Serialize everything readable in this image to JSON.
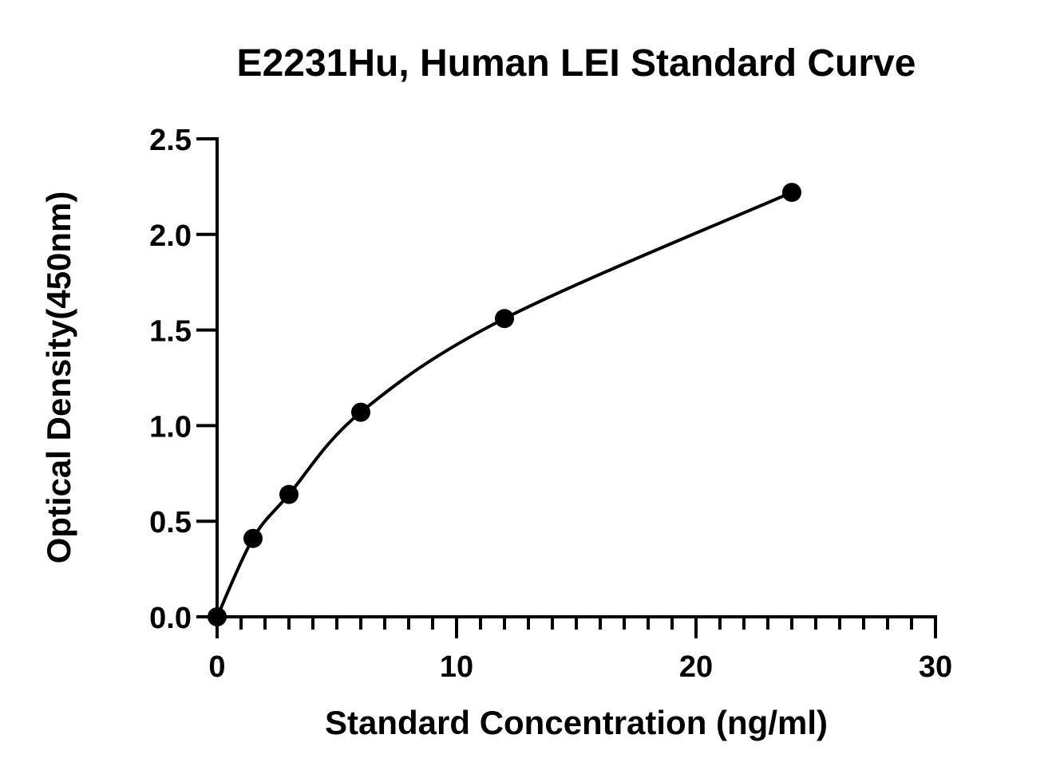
{
  "chart_data": {
    "type": "scatter",
    "title": "E2231Hu, Human LEI Standard Curve",
    "xlabel": "Standard Concentration (ng/ml)",
    "ylabel": "Optical Density(450nm)",
    "xlim": [
      0,
      30
    ],
    "ylim": [
      0,
      2.5
    ],
    "x_ticks": [
      "0",
      "10",
      "20",
      "30"
    ],
    "y_ticks": [
      "0.0",
      "0.5",
      "1.0",
      "1.5",
      "2.0",
      "2.5"
    ],
    "x_minor_step": 1,
    "grid": false,
    "legend": "none",
    "series": [
      {
        "points": [
          {
            "x": 0,
            "y": 0.0
          },
          {
            "x": 1.5,
            "y": 0.41
          },
          {
            "x": 3,
            "y": 0.64
          },
          {
            "x": 6,
            "y": 1.07
          },
          {
            "x": 12,
            "y": 1.56
          },
          {
            "x": 24,
            "y": 2.22
          }
        ],
        "fit": "smooth curve through points"
      }
    ],
    "colors": {
      "points": "#000000",
      "curve": "#000000",
      "axes": "#000000"
    }
  }
}
